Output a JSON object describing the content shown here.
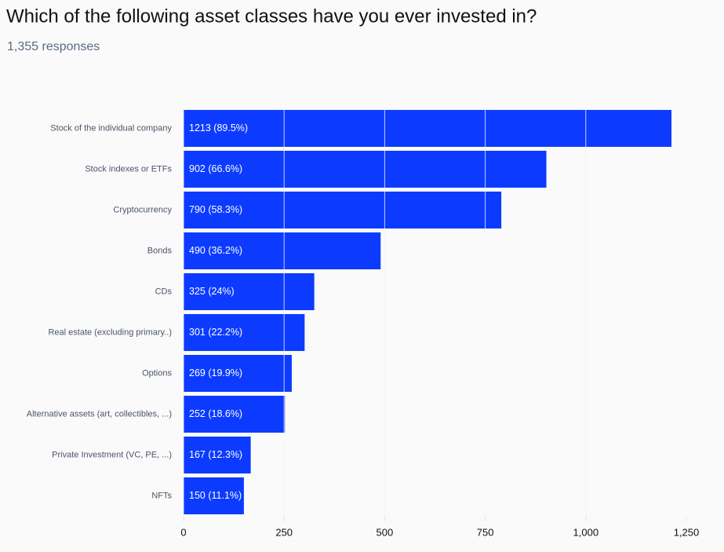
{
  "chart_data": {
    "type": "bar",
    "orientation": "horizontal",
    "title": "Which of the following asset classes have you ever invested in?",
    "subtitle": "1,355 responses",
    "categories": [
      "Stock of the individual company",
      "Stock indexes or ETFs",
      "Cryptocurrency",
      "Bonds",
      "CDs",
      "Real estate (excluding primary..)",
      "Options",
      "Alternative assets (art, collectibles, ...)",
      "Private Investment (VC, PE, ...)",
      "NFTs"
    ],
    "values": [
      1213,
      902,
      790,
      490,
      325,
      301,
      269,
      252,
      167,
      150
    ],
    "value_labels": [
      "1213 (89.5%)",
      "902 (66.6%)",
      "790 (58.3%)",
      "490 (36.2%)",
      "325 (24%)",
      "301 (22.2%)",
      "269 (19.9%)",
      "252 (18.6%)",
      "167 (12.3%)",
      "150 (11.1%)"
    ],
    "color": "#0c3bff",
    "xlim": [
      0,
      1250
    ],
    "xticks": [
      0,
      250,
      500,
      750,
      {
        "value": 1000,
        "label": "1,000"
      },
      {
        "value": 1250,
        "label": "1,250"
      }
    ],
    "grid": true
  }
}
